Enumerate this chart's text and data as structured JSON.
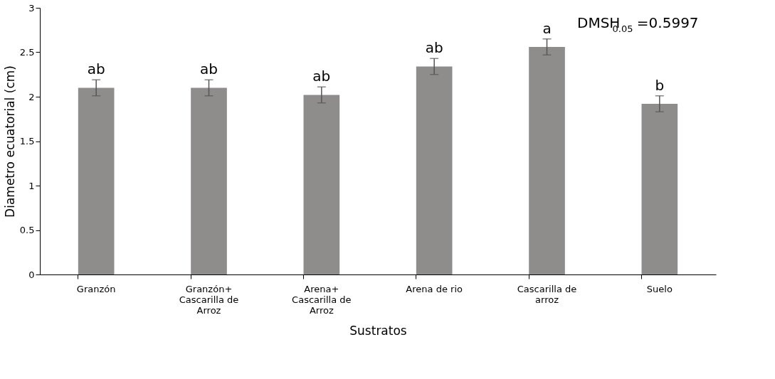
{
  "chart_data": {
    "type": "bar",
    "xlabel": "Sustratos",
    "ylabel": "Diametro ecuatorial  (cm)",
    "categories": [
      "Granzón",
      "Granzón+ Cascarilla de Arroz",
      "Arena+ Cascarilla de Arroz",
      "Arena de rio",
      "Cascarilla de arroz",
      "Suelo"
    ],
    "values": [
      2.1,
      2.1,
      2.02,
      2.34,
      2.56,
      1.92
    ],
    "errors": [
      0.09,
      0.09,
      0.09,
      0.09,
      0.09,
      0.09
    ],
    "value_labels": [
      "ab",
      "ab",
      "ab",
      "ab",
      "a",
      "b"
    ],
    "color": "#8f8c8c",
    "ylim": [
      0,
      3
    ],
    "yticks": [
      0,
      0.5,
      1,
      1.5,
      2,
      2.5,
      3
    ],
    "grid": false,
    "annotations": [
      "DMSH$_{0.05}$ =0.5997"
    ]
  }
}
